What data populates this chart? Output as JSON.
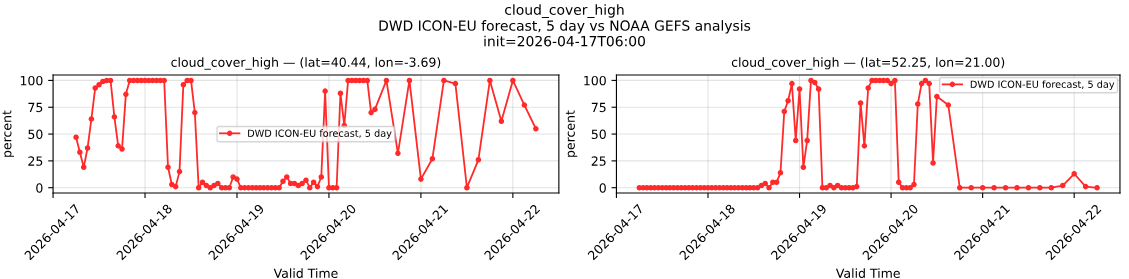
{
  "chart_data": [
    {
      "type": "line",
      "title": "cloud_cover_high — (lat=40.44, lon=-3.69)",
      "annotations": [
        "cloud_cover_high\nDWD ICON-EU forecast, 5 day vs NOAA GEFS analysis\ninit=2026-04-17T06:00"
      ],
      "xlabel": "Valid Time",
      "ylabel": "percent",
      "x": [
        "2026-04-17T06:00",
        "2026-04-17T07:00",
        "2026-04-17T08:00",
        "2026-04-17T09:00",
        "2026-04-17T10:00",
        "2026-04-17T11:00",
        "2026-04-17T12:00",
        "2026-04-17T13:00",
        "2026-04-17T14:00",
        "2026-04-17T15:00",
        "2026-04-17T16:00",
        "2026-04-17T17:00",
        "2026-04-17T18:00",
        "2026-04-17T19:00",
        "2026-04-17T20:00",
        "2026-04-17T21:00",
        "2026-04-17T22:00",
        "2026-04-17T23:00",
        "2026-04-18T00:00",
        "2026-04-18T01:00",
        "2026-04-18T02:00",
        "2026-04-18T03:00",
        "2026-04-18T04:00",
        "2026-04-18T05:00",
        "2026-04-18T06:00",
        "2026-04-18T07:00",
        "2026-04-18T08:00",
        "2026-04-18T09:00",
        "2026-04-18T10:00",
        "2026-04-18T11:00",
        "2026-04-18T12:00",
        "2026-04-18T13:00",
        "2026-04-18T14:00",
        "2026-04-18T15:00",
        "2026-04-18T16:00",
        "2026-04-18T17:00",
        "2026-04-18T18:00",
        "2026-04-18T19:00",
        "2026-04-18T20:00",
        "2026-04-18T21:00",
        "2026-04-18T22:00",
        "2026-04-18T23:00",
        "2026-04-19T00:00",
        "2026-04-19T01:00",
        "2026-04-19T02:00",
        "2026-04-19T03:00",
        "2026-04-19T04:00",
        "2026-04-19T05:00",
        "2026-04-19T06:00",
        "2026-04-19T07:00",
        "2026-04-19T08:00",
        "2026-04-19T09:00",
        "2026-04-19T10:00",
        "2026-04-19T11:00",
        "2026-04-19T12:00",
        "2026-04-19T13:00",
        "2026-04-19T14:00",
        "2026-04-19T15:00",
        "2026-04-19T16:00",
        "2026-04-19T17:00",
        "2026-04-19T18:00",
        "2026-04-19T19:00",
        "2026-04-19T20:00",
        "2026-04-19T21:00",
        "2026-04-19T22:00",
        "2026-04-19T23:00",
        "2026-04-20T00:00",
        "2026-04-20T01:00",
        "2026-04-20T02:00",
        "2026-04-20T03:00",
        "2026-04-20T04:00",
        "2026-04-20T05:00",
        "2026-04-20T06:00",
        "2026-04-20T07:00",
        "2026-04-20T08:00",
        "2026-04-20T09:00",
        "2026-04-20T10:00",
        "2026-04-20T11:00",
        "2026-04-20T12:00",
        "2026-04-20T15:00",
        "2026-04-20T18:00",
        "2026-04-20T21:00",
        "2026-04-21T00:00",
        "2026-04-21T03:00",
        "2026-04-21T06:00",
        "2026-04-21T09:00",
        "2026-04-21T12:00",
        "2026-04-21T15:00",
        "2026-04-21T18:00",
        "2026-04-21T21:00",
        "2026-04-22T00:00",
        "2026-04-22T03:00",
        "2026-04-22T06:00"
      ],
      "series": [
        {
          "name": "DWD ICON-EU forecast, 5 day",
          "color": "#ff2a2a",
          "values": [
            47,
            33,
            19,
            37,
            64,
            93,
            96,
            99,
            100,
            100,
            66,
            39,
            36,
            87,
            100,
            100,
            100,
            100,
            100,
            100,
            100,
            100,
            100,
            100,
            19,
            3,
            1,
            15,
            96,
            100,
            100,
            70,
            0,
            5,
            2,
            0,
            2,
            4,
            0,
            0,
            0,
            10,
            8,
            0,
            0,
            0,
            0,
            0,
            0,
            0,
            0,
            0,
            0,
            0,
            6,
            10,
            4,
            4,
            2,
            4,
            7,
            0,
            5,
            1,
            10,
            90,
            0,
            0,
            0,
            88,
            58,
            100,
            100,
            100,
            100,
            100,
            100,
            70,
            73,
            100,
            32,
            100,
            8,
            27,
            100,
            97,
            0,
            26,
            100,
            62,
            100,
            77,
            55
          ]
        }
      ],
      "xlim": [
        "2026-04-17T00:00",
        "2026-04-22T12:00"
      ],
      "xticks": [
        "2026-04-17",
        "2026-04-18",
        "2026-04-19",
        "2026-04-20",
        "2026-04-21",
        "2026-04-22"
      ],
      "ylim": [
        -5,
        105
      ],
      "yticks": [
        0,
        25,
        50,
        75,
        100
      ],
      "grid": true,
      "legend": "center",
      "marker": "circle",
      "line_style": "solid"
    },
    {
      "type": "line",
      "title": "cloud_cover_high — (lat=52.25, lon=21.00)",
      "xlabel": "Valid Time",
      "ylabel": "percent",
      "x": [
        "2026-04-17T06:00",
        "2026-04-17T07:00",
        "2026-04-17T08:00",
        "2026-04-17T09:00",
        "2026-04-17T10:00",
        "2026-04-17T11:00",
        "2026-04-17T12:00",
        "2026-04-17T13:00",
        "2026-04-17T14:00",
        "2026-04-17T15:00",
        "2026-04-17T16:00",
        "2026-04-17T17:00",
        "2026-04-17T18:00",
        "2026-04-17T19:00",
        "2026-04-17T20:00",
        "2026-04-17T21:00",
        "2026-04-17T22:00",
        "2026-04-17T23:00",
        "2026-04-18T00:00",
        "2026-04-18T01:00",
        "2026-04-18T02:00",
        "2026-04-18T03:00",
        "2026-04-18T04:00",
        "2026-04-18T05:00",
        "2026-04-18T06:00",
        "2026-04-18T07:00",
        "2026-04-18T08:00",
        "2026-04-18T09:00",
        "2026-04-18T10:00",
        "2026-04-18T11:00",
        "2026-04-18T12:00",
        "2026-04-18T13:00",
        "2026-04-18T14:00",
        "2026-04-18T15:00",
        "2026-04-18T16:00",
        "2026-04-18T17:00",
        "2026-04-18T18:00",
        "2026-04-18T19:00",
        "2026-04-18T20:00",
        "2026-04-18T21:00",
        "2026-04-18T22:00",
        "2026-04-18T23:00",
        "2026-04-19T00:00",
        "2026-04-19T01:00",
        "2026-04-19T02:00",
        "2026-04-19T03:00",
        "2026-04-19T04:00",
        "2026-04-19T05:00",
        "2026-04-19T06:00",
        "2026-04-19T07:00",
        "2026-04-19T08:00",
        "2026-04-19T09:00",
        "2026-04-19T10:00",
        "2026-04-19T11:00",
        "2026-04-19T12:00",
        "2026-04-19T13:00",
        "2026-04-19T14:00",
        "2026-04-19T15:00",
        "2026-04-19T16:00",
        "2026-04-19T17:00",
        "2026-04-19T18:00",
        "2026-04-19T19:00",
        "2026-04-19T20:00",
        "2026-04-19T21:00",
        "2026-04-19T22:00",
        "2026-04-19T23:00",
        "2026-04-20T00:00",
        "2026-04-20T01:00",
        "2026-04-20T02:00",
        "2026-04-20T03:00",
        "2026-04-20T04:00",
        "2026-04-20T05:00",
        "2026-04-20T06:00",
        "2026-04-20T07:00",
        "2026-04-20T08:00",
        "2026-04-20T09:00",
        "2026-04-20T10:00",
        "2026-04-20T11:00",
        "2026-04-20T12:00",
        "2026-04-20T15:00",
        "2026-04-20T18:00",
        "2026-04-20T21:00",
        "2026-04-21T00:00",
        "2026-04-21T03:00",
        "2026-04-21T06:00",
        "2026-04-21T09:00",
        "2026-04-21T12:00",
        "2026-04-21T15:00",
        "2026-04-21T18:00",
        "2026-04-21T21:00",
        "2026-04-22T00:00",
        "2026-04-22T03:00",
        "2026-04-22T06:00"
      ],
      "series": [
        {
          "name": "DWD ICON-EU forecast, 5 day",
          "color": "#ff2a2a",
          "values": [
            0,
            0,
            0,
            0,
            0,
            0,
            0,
            0,
            0,
            0,
            0,
            0,
            0,
            0,
            0,
            0,
            0,
            0,
            0,
            0,
            0,
            0,
            0,
            0,
            0,
            0,
            0,
            0,
            0,
            0,
            0,
            0,
            2,
            4,
            0,
            5,
            5,
            14,
            71,
            81,
            97,
            44,
            92,
            19,
            44,
            100,
            98,
            92,
            0,
            0,
            2,
            0,
            2,
            0,
            0,
            0,
            0,
            1,
            79,
            39,
            93,
            100,
            100,
            100,
            100,
            100,
            97,
            100,
            5,
            0,
            0,
            0,
            3,
            78,
            97,
            100,
            97,
            23,
            85,
            77,
            0,
            0,
            0,
            0,
            0,
            0,
            0,
            0,
            0,
            2,
            13,
            1,
            0
          ]
        }
      ],
      "xlim": [
        "2026-04-17T00:00",
        "2026-04-22T12:00"
      ],
      "xticks": [
        "2026-04-17",
        "2026-04-18",
        "2026-04-19",
        "2026-04-20",
        "2026-04-21",
        "2026-04-22"
      ],
      "ylim": [
        -5,
        105
      ],
      "yticks": [
        0,
        25,
        50,
        75,
        100
      ],
      "grid": true,
      "legend": "top right",
      "marker": "circle",
      "line_style": "solid"
    }
  ]
}
